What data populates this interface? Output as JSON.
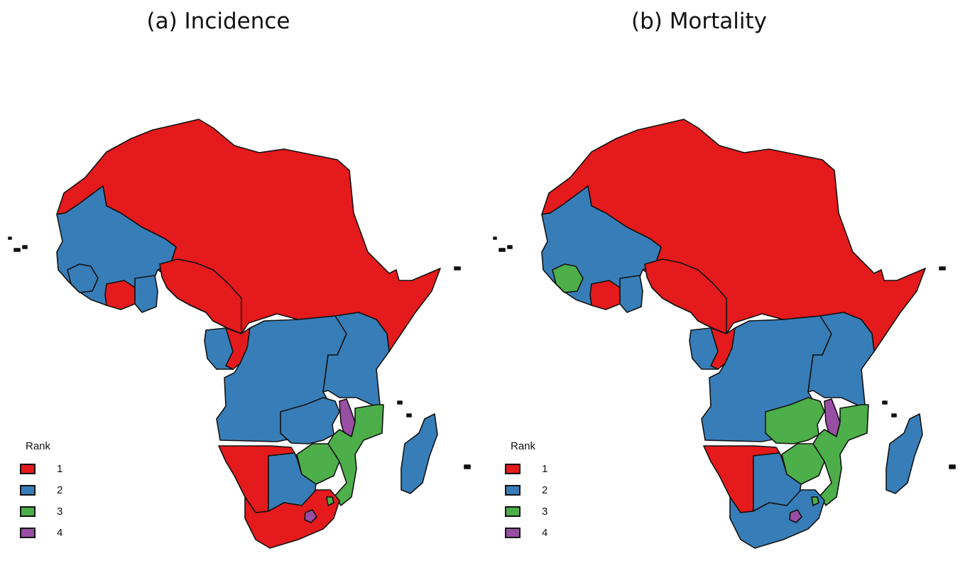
{
  "colors": {
    "1": "#e41a1c",
    "2": "#377eb8",
    "3": "#4daf4a",
    "4": "#984ea3"
  },
  "legend": {
    "title": "Rank",
    "items": [
      {
        "label": "1",
        "rank": "1"
      },
      {
        "label": "2",
        "rank": "2"
      },
      {
        "label": "3",
        "rank": "3"
      },
      {
        "label": "4",
        "rank": "4"
      }
    ]
  },
  "panels": [
    {
      "title": "(a) Incidence",
      "regions": {
        "north": "1",
        "westwest": "2",
        "guinea": "2",
        "ivory": "1",
        "ghana": "2",
        "nigeria": "1",
        "horn": "1",
        "gabon": "2",
        "congo": "1",
        "central": "2",
        "east": "2",
        "zambia": "2",
        "malawi": "4",
        "mozambique": "3",
        "zimbabwe": "3",
        "namibia": "1",
        "botswana": "2",
        "southafrica": "1",
        "lesotho": "4",
        "swaziland": "3",
        "madagascar": "2"
      }
    },
    {
      "title": "(b) Mortality",
      "regions": {
        "north": "1",
        "westwest": "2",
        "guinea": "3",
        "ivory": "1",
        "ghana": "2",
        "nigeria": "1",
        "horn": "1",
        "gabon": "2",
        "congo": "1",
        "central": "2",
        "east": "2",
        "zambia": "3",
        "malawi": "4",
        "mozambique": "3",
        "zimbabwe": "3",
        "namibia": "1",
        "botswana": "2",
        "southafrica": "2",
        "lesotho": "4",
        "swaziland": "3",
        "madagascar": "2"
      }
    }
  ]
}
